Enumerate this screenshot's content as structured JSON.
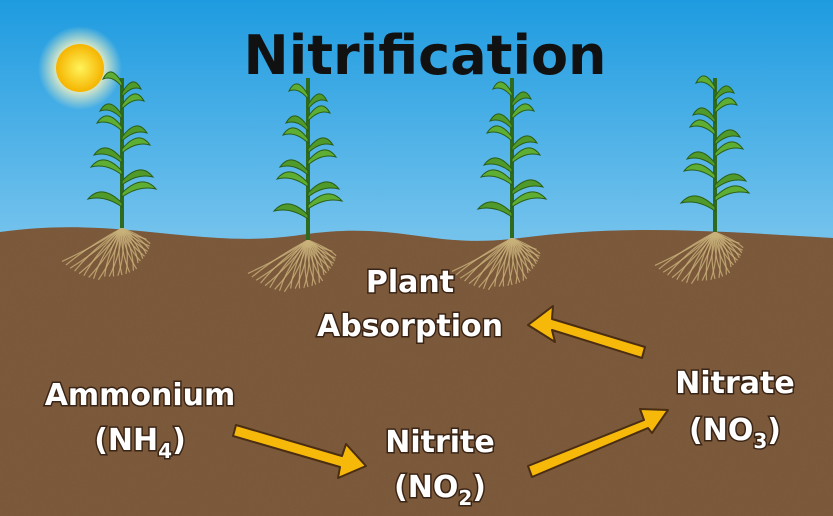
{
  "title": "Nitrification",
  "nodes": [
    {
      "lines": [
        "Ammonium"
      ],
      "formula": {
        "prefix": "(NH",
        "sub": "4",
        "suffix": ")"
      }
    },
    {
      "lines": [
        "Nitrite"
      ],
      "formula": {
        "prefix": "(NO",
        "sub": "2",
        "suffix": ")"
      }
    },
    {
      "lines": [
        "Nitrate"
      ],
      "formula": {
        "prefix": "(NO",
        "sub": "3",
        "suffix": ")"
      }
    },
    {
      "lines": [
        "Plant",
        "Absorption"
      ]
    }
  ]
}
